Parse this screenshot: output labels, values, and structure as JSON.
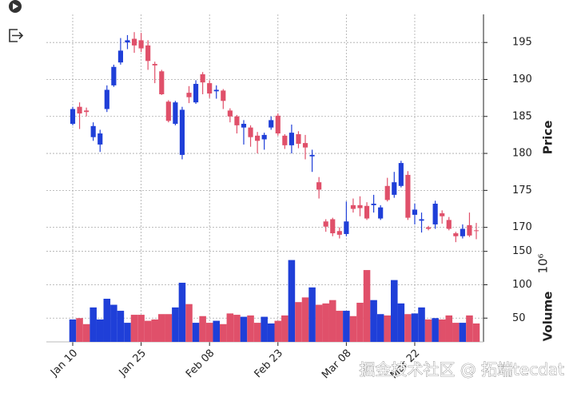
{
  "chart_data": {
    "type": "candlestick",
    "ylabel": "Price",
    "volume_label": "Volume",
    "volume_scale": "10⁶",
    "watermark": "掘金技术社区 @ 拓端tecdat",
    "up_color": "#1f3fd8",
    "down_color": "#e0506a",
    "grid": true,
    "categories": [
      "Jan 10",
      null,
      null,
      null,
      null,
      null,
      null,
      null,
      null,
      null,
      "Jan 25",
      null,
      null,
      null,
      null,
      null,
      null,
      null,
      null,
      null,
      "Feb 08",
      null,
      null,
      null,
      null,
      null,
      null,
      null,
      null,
      null,
      "Feb 23",
      null,
      null,
      null,
      null,
      null,
      null,
      null,
      null,
      null,
      "Mar 08",
      null,
      null,
      null,
      null,
      null,
      null,
      null,
      null,
      null,
      "Mar 22",
      null,
      null,
      null,
      null,
      null,
      null,
      null,
      null,
      null
    ],
    "open": [
      184.0,
      186.3,
      185.8,
      182.2,
      181.2,
      186.0,
      189.2,
      192.3,
      195.0,
      195.5,
      195.3,
      194.6,
      192.1,
      191.1,
      187.0,
      184.0,
      179.8,
      188.2,
      186.9,
      190.7,
      189.5,
      188.4,
      188.5,
      185.8,
      185.0,
      183.5,
      183.5,
      182.4,
      181.9,
      183.5,
      185.1,
      182.4,
      181.1,
      182.6,
      181.4,
      179.6,
      176.1,
      170.8,
      171.1,
      169.5,
      169.1,
      173.0,
      173.0,
      172.9,
      173.0,
      171.2,
      175.6,
      174.4,
      175.6,
      177.1,
      171.7,
      170.9,
      170.0,
      170.4,
      171.9,
      171.0,
      169.2,
      168.8,
      170.3,
      169.6
    ],
    "high": [
      186.3,
      186.9,
      186.2,
      184.2,
      183.2,
      189.2,
      192.0,
      195.6,
      196.0,
      196.4,
      196.3,
      195.3,
      192.4,
      191.3,
      187.2,
      187.1,
      186.3,
      189.1,
      189.9,
      191.0,
      189.9,
      189.2,
      188.7,
      186.1,
      185.2,
      184.5,
      183.8,
      182.9,
      182.8,
      185.0,
      185.4,
      182.6,
      183.9,
      183.0,
      182.5,
      180.5,
      176.8,
      171.1,
      171.3,
      170.0,
      173.5,
      173.9,
      174.2,
      173.4,
      174.4,
      173.0,
      176.7,
      177.5,
      179.0,
      177.6,
      173.2,
      172.0,
      170.2,
      173.6,
      172.3,
      171.4,
      169.4,
      170.4,
      172.0,
      170.6
    ],
    "low": [
      183.8,
      183.3,
      185.0,
      181.7,
      180.2,
      185.6,
      189.0,
      192.0,
      194.1,
      193.6,
      193.7,
      191.3,
      189.5,
      187.9,
      184.2,
      183.8,
      179.2,
      186.8,
      186.7,
      188.0,
      187.5,
      187.4,
      186.0,
      184.2,
      182.7,
      181.2,
      180.9,
      180.0,
      180.5,
      183.2,
      182.4,
      180.6,
      180.0,
      180.7,
      179.2,
      177.5,
      173.9,
      169.4,
      168.8,
      168.5,
      168.8,
      172.0,
      171.5,
      171.0,
      172.0,
      171.0,
      173.5,
      174.0,
      175.4,
      171.0,
      170.4,
      169.3,
      169.6,
      169.8,
      170.5,
      169.6,
      168.0,
      168.5,
      168.7,
      168.4
    ],
    "close": [
      186.0,
      185.4,
      185.6,
      183.7,
      182.7,
      188.6,
      191.7,
      193.9,
      195.3,
      194.6,
      194.2,
      192.5,
      191.9,
      188.0,
      184.4,
      186.9,
      185.9,
      187.6,
      189.4,
      189.6,
      188.1,
      188.6,
      187.1,
      185.0,
      183.8,
      184.0,
      182.2,
      181.7,
      182.5,
      184.5,
      182.7,
      181.1,
      182.8,
      181.3,
      180.8,
      179.8,
      175.1,
      170.1,
      169.2,
      169.0,
      170.8,
      172.5,
      172.6,
      171.2,
      173.2,
      172.7,
      173.7,
      176.1,
      178.7,
      171.3,
      172.4,
      171.1,
      169.8,
      173.2,
      171.5,
      169.8,
      168.8,
      169.8,
      168.9,
      169.5
    ],
    "volume": [
      48,
      50,
      41,
      66,
      48,
      79,
      70,
      61,
      43,
      55,
      55,
      46,
      48,
      56,
      56,
      66,
      103,
      71,
      43,
      53,
      43,
      46,
      41,
      57,
      55,
      52,
      54,
      43,
      52,
      42,
      46,
      54,
      137,
      74,
      81,
      96,
      70,
      72,
      77,
      61,
      61,
      53,
      73,
      122,
      77,
      56,
      54,
      107,
      72,
      56,
      57,
      66,
      48,
      50,
      48,
      54,
      43,
      43,
      54,
      42
    ],
    "ylim": [
      167.8,
      198.8
    ],
    "yticks": [
      170,
      175,
      180,
      185,
      190,
      195
    ],
    "volume_ylim": [
      14.4,
      158
    ],
    "volume_yticks": [
      50,
      100,
      150
    ]
  }
}
